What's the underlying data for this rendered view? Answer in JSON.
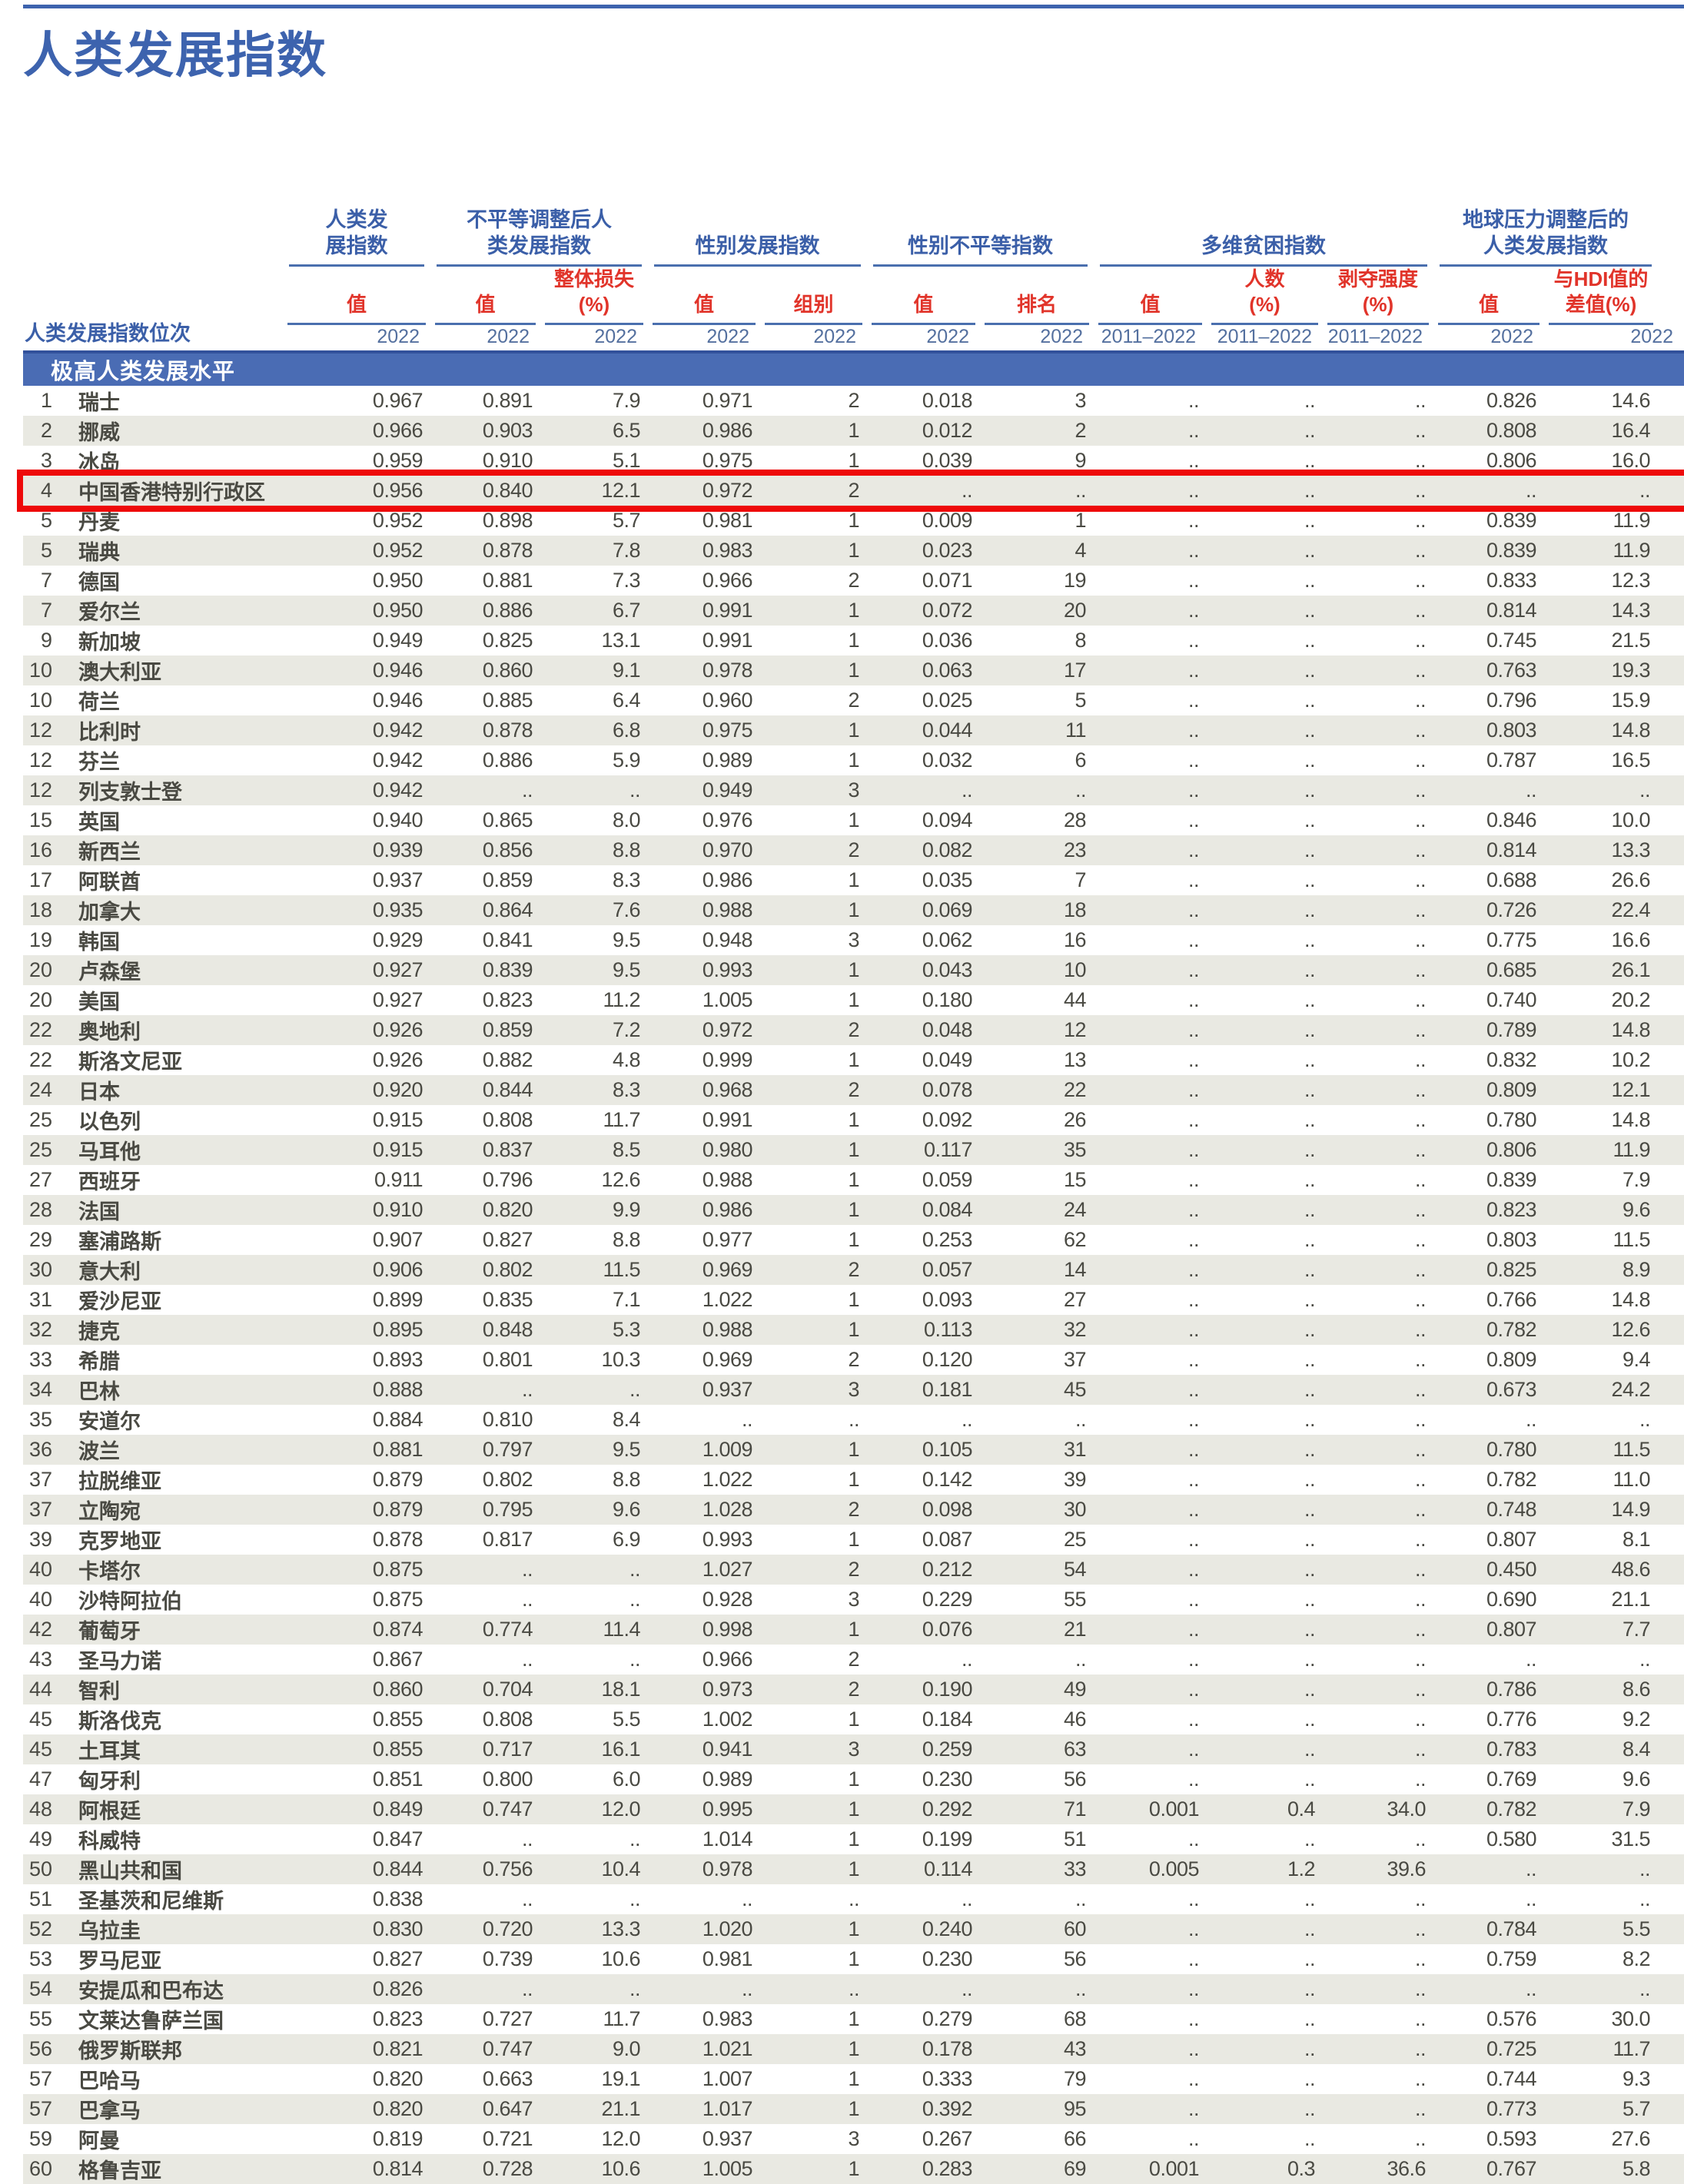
{
  "page": {
    "title": "人类发展指数",
    "accent_blue": "#3d63ae",
    "band_blue": "#4a6cb4",
    "accent_red": "#e1342a",
    "highlight_red": "#ee0a0a",
    "row_alt_gray": "#e9e9e2",
    "missing_marker": ".."
  },
  "table": {
    "row_label_header": "人类发展指数位次",
    "section_header": "极高人类发展水平",
    "groups": [
      {
        "label": "人类发\n展指数",
        "span": 1
      },
      {
        "label": "不平等调整后人\n类发展指数",
        "span": 2
      },
      {
        "label": "性别发展指数",
        "span": 2
      },
      {
        "label": "性别不平等指数",
        "span": 2
      },
      {
        "label": "多维贫困指数",
        "span": 3
      },
      {
        "label": "地球压力调整后的\n人类发展指数",
        "span": 2
      }
    ],
    "subheads": [
      "值",
      "值",
      "整体损失\n(%)",
      "值",
      "组别",
      "值",
      "排名",
      "值",
      "人数\n(%)",
      "剥夺强度\n(%)",
      "值",
      "与HDI值的\n差值(%)"
    ],
    "years": [
      "2022",
      "2022",
      "2022",
      "2022",
      "2022",
      "2022",
      "2022",
      "2011–2022",
      "2011–2022",
      "2011–2022",
      "2022",
      "2022"
    ],
    "rows": [
      {
        "rank": "1",
        "name": "瑞士",
        "v": [
          "0.967",
          "0.891",
          "7.9",
          "0.971",
          "2",
          "0.018",
          "3",
          "..",
          "..",
          "..",
          "0.826",
          "14.6"
        ]
      },
      {
        "rank": "2",
        "name": "挪威",
        "v": [
          "0.966",
          "0.903",
          "6.5",
          "0.986",
          "1",
          "0.012",
          "2",
          "..",
          "..",
          "..",
          "0.808",
          "16.4"
        ]
      },
      {
        "rank": "3",
        "name": "冰岛",
        "v": [
          "0.959",
          "0.910",
          "5.1",
          "0.975",
          "1",
          "0.039",
          "9",
          "..",
          "..",
          "..",
          "0.806",
          "16.0"
        ]
      },
      {
        "rank": "4",
        "name": "中国香港特别行政区",
        "highlight": true,
        "v": [
          "0.956",
          "0.840",
          "12.1",
          "0.972",
          "2",
          "..",
          "..",
          "..",
          "..",
          "..",
          "..",
          ".."
        ]
      },
      {
        "rank": "5",
        "name": "丹麦",
        "v": [
          "0.952",
          "0.898",
          "5.7",
          "0.981",
          "1",
          "0.009",
          "1",
          "..",
          "..",
          "..",
          "0.839",
          "11.9"
        ]
      },
      {
        "rank": "5",
        "name": "瑞典",
        "v": [
          "0.952",
          "0.878",
          "7.8",
          "0.983",
          "1",
          "0.023",
          "4",
          "..",
          "..",
          "..",
          "0.839",
          "11.9"
        ]
      },
      {
        "rank": "7",
        "name": "德国",
        "v": [
          "0.950",
          "0.881",
          "7.3",
          "0.966",
          "2",
          "0.071",
          "19",
          "..",
          "..",
          "..",
          "0.833",
          "12.3"
        ]
      },
      {
        "rank": "7",
        "name": "爱尔兰",
        "v": [
          "0.950",
          "0.886",
          "6.7",
          "0.991",
          "1",
          "0.072",
          "20",
          "..",
          "..",
          "..",
          "0.814",
          "14.3"
        ]
      },
      {
        "rank": "9",
        "name": "新加坡",
        "v": [
          "0.949",
          "0.825",
          "13.1",
          "0.991",
          "1",
          "0.036",
          "8",
          "..",
          "..",
          "..",
          "0.745",
          "21.5"
        ]
      },
      {
        "rank": "10",
        "name": "澳大利亚",
        "v": [
          "0.946",
          "0.860",
          "9.1",
          "0.978",
          "1",
          "0.063",
          "17",
          "..",
          "..",
          "..",
          "0.763",
          "19.3"
        ]
      },
      {
        "rank": "10",
        "name": "荷兰",
        "v": [
          "0.946",
          "0.885",
          "6.4",
          "0.960",
          "2",
          "0.025",
          "5",
          "..",
          "..",
          "..",
          "0.796",
          "15.9"
        ]
      },
      {
        "rank": "12",
        "name": "比利时",
        "v": [
          "0.942",
          "0.878",
          "6.8",
          "0.975",
          "1",
          "0.044",
          "11",
          "..",
          "..",
          "..",
          "0.803",
          "14.8"
        ]
      },
      {
        "rank": "12",
        "name": "芬兰",
        "v": [
          "0.942",
          "0.886",
          "5.9",
          "0.989",
          "1",
          "0.032",
          "6",
          "..",
          "..",
          "..",
          "0.787",
          "16.5"
        ]
      },
      {
        "rank": "12",
        "name": "列支敦士登",
        "v": [
          "0.942",
          "..",
          "..",
          "0.949",
          "3",
          "..",
          "..",
          "..",
          "..",
          "..",
          "..",
          ".."
        ]
      },
      {
        "rank": "15",
        "name": "英国",
        "v": [
          "0.940",
          "0.865",
          "8.0",
          "0.976",
          "1",
          "0.094",
          "28",
          "..",
          "..",
          "..",
          "0.846",
          "10.0"
        ]
      },
      {
        "rank": "16",
        "name": "新西兰",
        "v": [
          "0.939",
          "0.856",
          "8.8",
          "0.970",
          "2",
          "0.082",
          "23",
          "..",
          "..",
          "..",
          "0.814",
          "13.3"
        ]
      },
      {
        "rank": "17",
        "name": "阿联酋",
        "v": [
          "0.937",
          "0.859",
          "8.3",
          "0.986",
          "1",
          "0.035",
          "7",
          "..",
          "..",
          "..",
          "0.688",
          "26.6"
        ]
      },
      {
        "rank": "18",
        "name": "加拿大",
        "v": [
          "0.935",
          "0.864",
          "7.6",
          "0.988",
          "1",
          "0.069",
          "18",
          "..",
          "..",
          "..",
          "0.726",
          "22.4"
        ]
      },
      {
        "rank": "19",
        "name": "韩国",
        "v": [
          "0.929",
          "0.841",
          "9.5",
          "0.948",
          "3",
          "0.062",
          "16",
          "..",
          "..",
          "..",
          "0.775",
          "16.6"
        ]
      },
      {
        "rank": "20",
        "name": "卢森堡",
        "v": [
          "0.927",
          "0.839",
          "9.5",
          "0.993",
          "1",
          "0.043",
          "10",
          "..",
          "..",
          "..",
          "0.685",
          "26.1"
        ]
      },
      {
        "rank": "20",
        "name": "美国",
        "v": [
          "0.927",
          "0.823",
          "11.2",
          "1.005",
          "1",
          "0.180",
          "44",
          "..",
          "..",
          "..",
          "0.740",
          "20.2"
        ]
      },
      {
        "rank": "22",
        "name": "奥地利",
        "v": [
          "0.926",
          "0.859",
          "7.2",
          "0.972",
          "2",
          "0.048",
          "12",
          "..",
          "..",
          "..",
          "0.789",
          "14.8"
        ]
      },
      {
        "rank": "22",
        "name": "斯洛文尼亚",
        "v": [
          "0.926",
          "0.882",
          "4.8",
          "0.999",
          "1",
          "0.049",
          "13",
          "..",
          "..",
          "..",
          "0.832",
          "10.2"
        ]
      },
      {
        "rank": "24",
        "name": "日本",
        "v": [
          "0.920",
          "0.844",
          "8.3",
          "0.968",
          "2",
          "0.078",
          "22",
          "..",
          "..",
          "..",
          "0.809",
          "12.1"
        ]
      },
      {
        "rank": "25",
        "name": "以色列",
        "v": [
          "0.915",
          "0.808",
          "11.7",
          "0.991",
          "1",
          "0.092",
          "26",
          "..",
          "..",
          "..",
          "0.780",
          "14.8"
        ]
      },
      {
        "rank": "25",
        "name": "马耳他",
        "v": [
          "0.915",
          "0.837",
          "8.5",
          "0.980",
          "1",
          "0.117",
          "35",
          "..",
          "..",
          "..",
          "0.806",
          "11.9"
        ]
      },
      {
        "rank": "27",
        "name": "西班牙",
        "v": [
          "0.911",
          "0.796",
          "12.6",
          "0.988",
          "1",
          "0.059",
          "15",
          "..",
          "..",
          "..",
          "0.839",
          "7.9"
        ]
      },
      {
        "rank": "28",
        "name": "法国",
        "v": [
          "0.910",
          "0.820",
          "9.9",
          "0.986",
          "1",
          "0.084",
          "24",
          "..",
          "..",
          "..",
          "0.823",
          "9.6"
        ]
      },
      {
        "rank": "29",
        "name": "塞浦路斯",
        "v": [
          "0.907",
          "0.827",
          "8.8",
          "0.977",
          "1",
          "0.253",
          "62",
          "..",
          "..",
          "..",
          "0.803",
          "11.5"
        ]
      },
      {
        "rank": "30",
        "name": "意大利",
        "v": [
          "0.906",
          "0.802",
          "11.5",
          "0.969",
          "2",
          "0.057",
          "14",
          "..",
          "..",
          "..",
          "0.825",
          "8.9"
        ]
      },
      {
        "rank": "31",
        "name": "爱沙尼亚",
        "v": [
          "0.899",
          "0.835",
          "7.1",
          "1.022",
          "1",
          "0.093",
          "27",
          "..",
          "..",
          "..",
          "0.766",
          "14.8"
        ]
      },
      {
        "rank": "32",
        "name": "捷克",
        "v": [
          "0.895",
          "0.848",
          "5.3",
          "0.988",
          "1",
          "0.113",
          "32",
          "..",
          "..",
          "..",
          "0.782",
          "12.6"
        ]
      },
      {
        "rank": "33",
        "name": "希腊",
        "v": [
          "0.893",
          "0.801",
          "10.3",
          "0.969",
          "2",
          "0.120",
          "37",
          "..",
          "..",
          "..",
          "0.809",
          "9.4"
        ]
      },
      {
        "rank": "34",
        "name": "巴林",
        "v": [
          "0.888",
          "..",
          "..",
          "0.937",
          "3",
          "0.181",
          "45",
          "..",
          "..",
          "..",
          "0.673",
          "24.2"
        ]
      },
      {
        "rank": "35",
        "name": "安道尔",
        "v": [
          "0.884",
          "0.810",
          "8.4",
          "..",
          "..",
          "..",
          "..",
          "..",
          "..",
          "..",
          "..",
          ".."
        ]
      },
      {
        "rank": "36",
        "name": "波兰",
        "v": [
          "0.881",
          "0.797",
          "9.5",
          "1.009",
          "1",
          "0.105",
          "31",
          "..",
          "..",
          "..",
          "0.780",
          "11.5"
        ]
      },
      {
        "rank": "37",
        "name": "拉脱维亚",
        "v": [
          "0.879",
          "0.802",
          "8.8",
          "1.022",
          "1",
          "0.142",
          "39",
          "..",
          "..",
          "..",
          "0.782",
          "11.0"
        ]
      },
      {
        "rank": "37",
        "name": "立陶宛",
        "v": [
          "0.879",
          "0.795",
          "9.6",
          "1.028",
          "2",
          "0.098",
          "30",
          "..",
          "..",
          "..",
          "0.748",
          "14.9"
        ]
      },
      {
        "rank": "39",
        "name": "克罗地亚",
        "v": [
          "0.878",
          "0.817",
          "6.9",
          "0.993",
          "1",
          "0.087",
          "25",
          "..",
          "..",
          "..",
          "0.807",
          "8.1"
        ]
      },
      {
        "rank": "40",
        "name": "卡塔尔",
        "v": [
          "0.875",
          "..",
          "..",
          "1.027",
          "2",
          "0.212",
          "54",
          "..",
          "..",
          "..",
          "0.450",
          "48.6"
        ]
      },
      {
        "rank": "40",
        "name": "沙特阿拉伯",
        "v": [
          "0.875",
          "..",
          "..",
          "0.928",
          "3",
          "0.229",
          "55",
          "..",
          "..",
          "..",
          "0.690",
          "21.1"
        ]
      },
      {
        "rank": "42",
        "name": "葡萄牙",
        "v": [
          "0.874",
          "0.774",
          "11.4",
          "0.998",
          "1",
          "0.076",
          "21",
          "..",
          "..",
          "..",
          "0.807",
          "7.7"
        ]
      },
      {
        "rank": "43",
        "name": "圣马力诺",
        "v": [
          "0.867",
          "..",
          "..",
          "0.966",
          "2",
          "..",
          "..",
          "..",
          "..",
          "..",
          "..",
          ".."
        ]
      },
      {
        "rank": "44",
        "name": "智利",
        "v": [
          "0.860",
          "0.704",
          "18.1",
          "0.973",
          "2",
          "0.190",
          "49",
          "..",
          "..",
          "..",
          "0.786",
          "8.6"
        ]
      },
      {
        "rank": "45",
        "name": "斯洛伐克",
        "v": [
          "0.855",
          "0.808",
          "5.5",
          "1.002",
          "1",
          "0.184",
          "46",
          "..",
          "..",
          "..",
          "0.776",
          "9.2"
        ]
      },
      {
        "rank": "45",
        "name": "土耳其",
        "v": [
          "0.855",
          "0.717",
          "16.1",
          "0.941",
          "3",
          "0.259",
          "63",
          "..",
          "..",
          "..",
          "0.783",
          "8.4"
        ]
      },
      {
        "rank": "47",
        "name": "匈牙利",
        "v": [
          "0.851",
          "0.800",
          "6.0",
          "0.989",
          "1",
          "0.230",
          "56",
          "..",
          "..",
          "..",
          "0.769",
          "9.6"
        ]
      },
      {
        "rank": "48",
        "name": "阿根廷",
        "v": [
          "0.849",
          "0.747",
          "12.0",
          "0.995",
          "1",
          "0.292",
          "71",
          "0.001",
          "0.4",
          "34.0",
          "0.782",
          "7.9"
        ]
      },
      {
        "rank": "49",
        "name": "科威特",
        "v": [
          "0.847",
          "..",
          "..",
          "1.014",
          "1",
          "0.199",
          "51",
          "..",
          "..",
          "..",
          "0.580",
          "31.5"
        ]
      },
      {
        "rank": "50",
        "name": "黑山共和国",
        "v": [
          "0.844",
          "0.756",
          "10.4",
          "0.978",
          "1",
          "0.114",
          "33",
          "0.005",
          "1.2",
          "39.6",
          "..",
          ".."
        ]
      },
      {
        "rank": "51",
        "name": "圣基茨和尼维斯",
        "v": [
          "0.838",
          "..",
          "..",
          "..",
          "..",
          "..",
          "..",
          "..",
          "..",
          "..",
          "..",
          ".."
        ]
      },
      {
        "rank": "52",
        "name": "乌拉圭",
        "v": [
          "0.830",
          "0.720",
          "13.3",
          "1.020",
          "1",
          "0.240",
          "60",
          "..",
          "..",
          "..",
          "0.784",
          "5.5"
        ]
      },
      {
        "rank": "53",
        "name": "罗马尼亚",
        "v": [
          "0.827",
          "0.739",
          "10.6",
          "0.981",
          "1",
          "0.230",
          "56",
          "..",
          "..",
          "..",
          "0.759",
          "8.2"
        ]
      },
      {
        "rank": "54",
        "name": "安提瓜和巴布达",
        "v": [
          "0.826",
          "..",
          "..",
          "..",
          "..",
          "..",
          "..",
          "..",
          "..",
          "..",
          "..",
          ".."
        ]
      },
      {
        "rank": "55",
        "name": "文莱达鲁萨兰国",
        "v": [
          "0.823",
          "0.727",
          "11.7",
          "0.983",
          "1",
          "0.279",
          "68",
          "..",
          "..",
          "..",
          "0.576",
          "30.0"
        ]
      },
      {
        "rank": "56",
        "name": "俄罗斯联邦",
        "v": [
          "0.821",
          "0.747",
          "9.0",
          "1.021",
          "1",
          "0.178",
          "43",
          "..",
          "..",
          "..",
          "0.725",
          "11.7"
        ]
      },
      {
        "rank": "57",
        "name": "巴哈马",
        "v": [
          "0.820",
          "0.663",
          "19.1",
          "1.007",
          "1",
          "0.333",
          "79",
          "..",
          "..",
          "..",
          "0.744",
          "9.3"
        ]
      },
      {
        "rank": "57",
        "name": "巴拿马",
        "v": [
          "0.820",
          "0.647",
          "21.1",
          "1.017",
          "1",
          "0.392",
          "95",
          "..",
          "..",
          "..",
          "0.773",
          "5.7"
        ]
      },
      {
        "rank": "59",
        "name": "阿曼",
        "v": [
          "0.819",
          "0.721",
          "12.0",
          "0.937",
          "3",
          "0.267",
          "66",
          "..",
          "..",
          "..",
          "0.593",
          "27.6"
        ]
      },
      {
        "rank": "60",
        "name": "格鲁吉亚",
        "v": [
          "0.814",
          "0.728",
          "10.6",
          "1.005",
          "1",
          "0.283",
          "69",
          "0.001",
          "0.3",
          "36.6",
          "0.767",
          "5.8"
        ]
      }
    ]
  }
}
